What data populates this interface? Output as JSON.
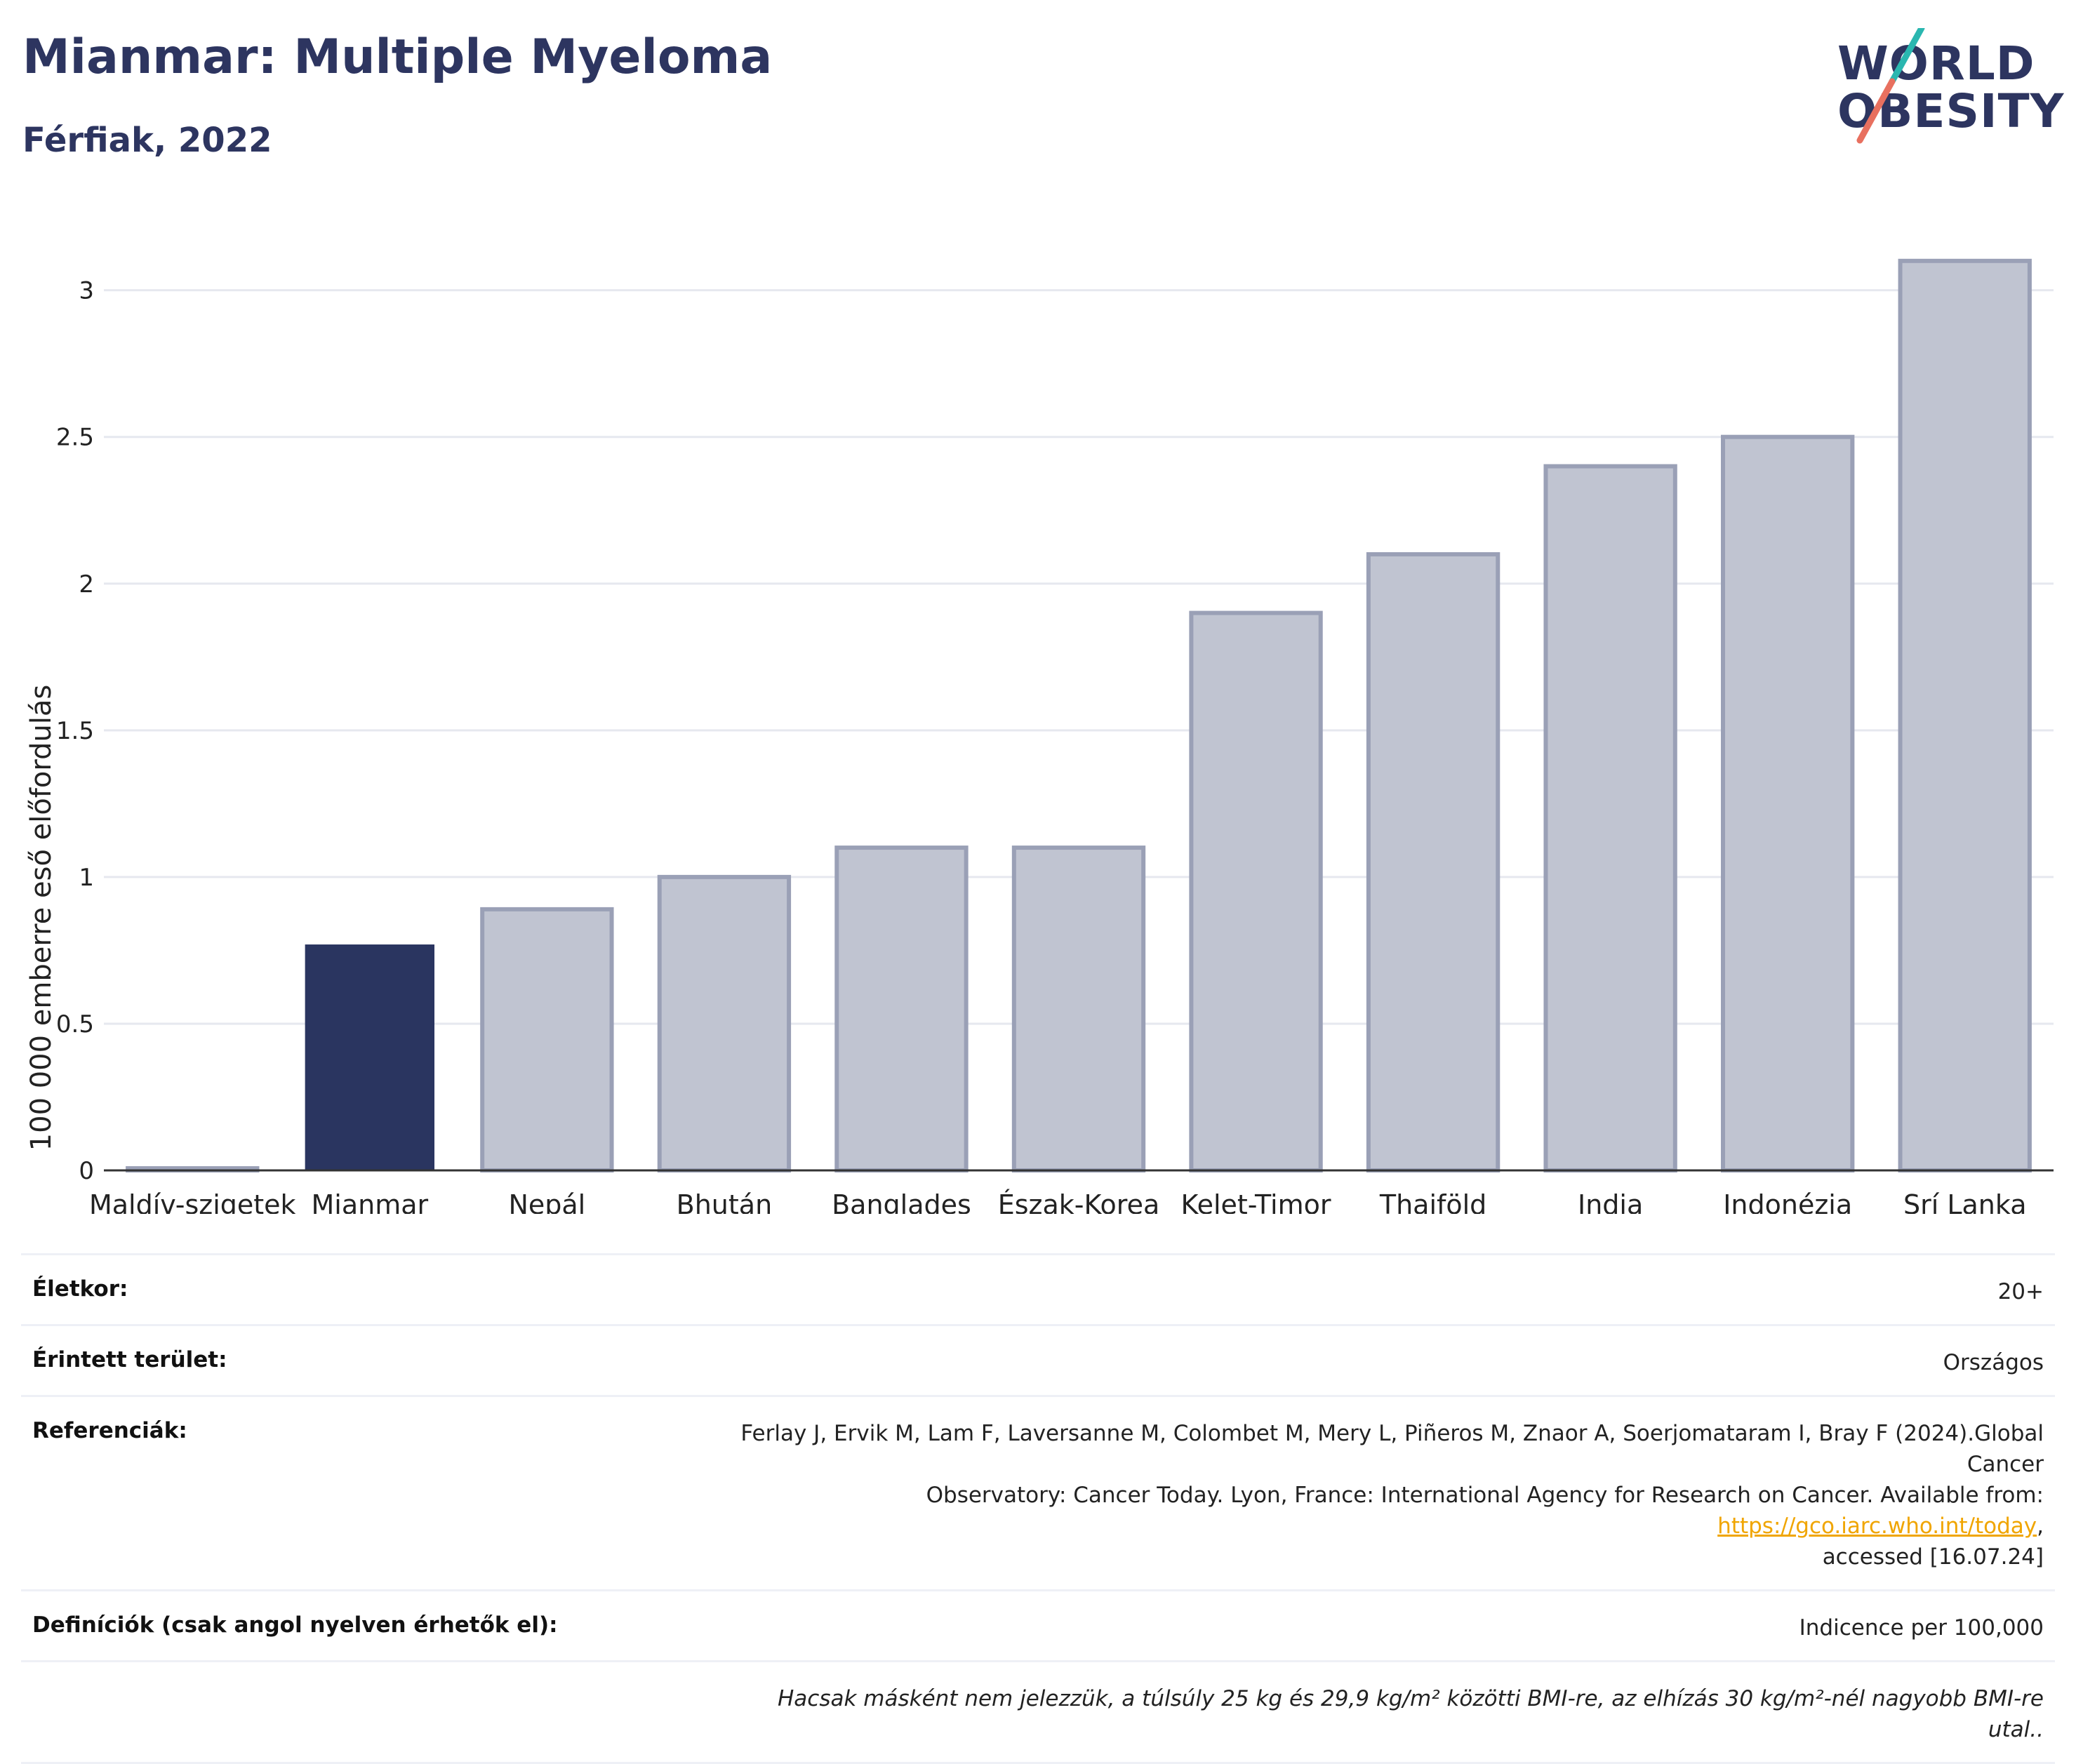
{
  "header": {
    "title": "Mianmar: Multiple Myeloma",
    "subtitle": "Férfiak, 2022"
  },
  "logo": {
    "line1": "WORLD",
    "line2": "OBESITY",
    "colors": {
      "text": "#2d3560",
      "slash_top": "#2ab7b0",
      "slash_bottom": "#e8705f"
    }
  },
  "chart_data": {
    "type": "bar",
    "categories": [
      "Maldív-szigetek",
      "Mianmar",
      "Nepál",
      "Bhután",
      "Banglades",
      "Észak-Korea",
      "Kelet-Timor",
      "Thaiföld",
      "India",
      "Indonézia",
      "Srí Lanka"
    ],
    "values": [
      0,
      0.77,
      0.89,
      1.0,
      1.1,
      1.1,
      1.9,
      2.1,
      2.4,
      2.5,
      3.1
    ],
    "highlight": "Mianmar",
    "ylabel": "100 000 emberre eső előfordulás",
    "xlabel": "",
    "ylim": [
      0,
      3.2
    ],
    "yticks": [
      0,
      0.5,
      1,
      1.5,
      2,
      2.5,
      3
    ],
    "ytick_labels": [
      "0",
      "0.5",
      "1",
      "1.5",
      "2",
      "2.5",
      "3"
    ],
    "grid": true,
    "colors": {
      "highlight": "#2a3560",
      "other_fill": "#c0c4d1",
      "other_stroke": "#9aa0b6",
      "grid": "#e6e8ef",
      "axis": "#333333"
    }
  },
  "info": {
    "age_label": "Életkor:",
    "age_value": "20+",
    "area_label": "Érintett terület:",
    "area_value": "Országos",
    "ref_label": "Referenciák:",
    "ref_line1": "Ferlay J, Ervik M, Lam F, Laversanne M, Colombet M, Mery L, Piñeros M, Znaor A, Soerjomataram I, Bray F (2024).Global Cancer",
    "ref_line2": "Observatory: Cancer Today. Lyon, France: International Agency for Research on Cancer. Available from: ",
    "ref_link": "https://gco.iarc.who.int/today",
    "ref_line2_end": ",",
    "ref_line3": "accessed [16.07.24]",
    "def_label": "Definíciók (csak angol nyelven érhetők el):",
    "def_value": "Indicence per 100,000",
    "note": "Hacsak másként nem jelezzük, a túlsúly 25 kg és 29,9 kg/m² közötti BMI-re, az elhízás 30 kg/m²-nél nagyobb BMI-re utal.."
  }
}
